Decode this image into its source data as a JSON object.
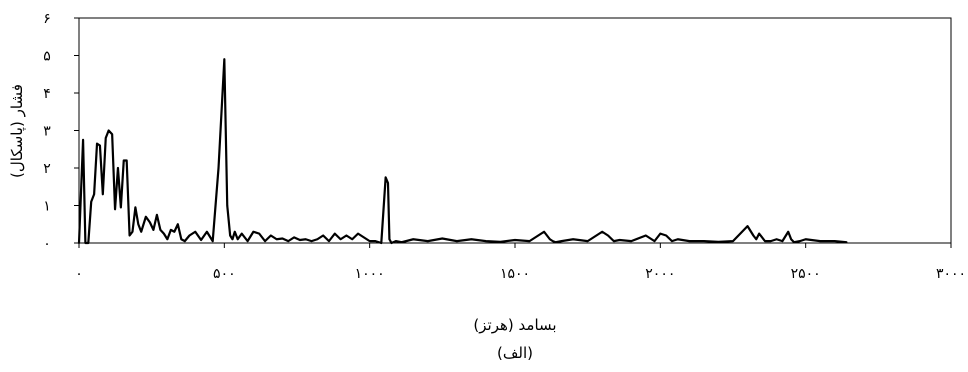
{
  "chart_data": {
    "type": "line",
    "title": "",
    "xlabel": "بسامد (هرتز)",
    "ylabel": "فشار (پاسکال)",
    "caption": "(الف)",
    "xlim": [
      0,
      3000
    ],
    "ylim": [
      0,
      6
    ],
    "x_ticks": [
      0,
      500,
      1000,
      1500,
      2000,
      2500,
      3000
    ],
    "x_tick_labels": [
      "۰",
      "۵۰۰",
      "۱۰۰۰",
      "۱۵۰۰",
      "۲۰۰۰",
      "۲۵۰۰",
      "۳۰۰۰"
    ],
    "y_ticks": [
      0,
      1,
      2,
      3,
      4,
      5,
      6
    ],
    "y_tick_labels": [
      "۰",
      "۱",
      "۲",
      "۳",
      "۴",
      "۵",
      "۶"
    ],
    "grid": false,
    "legend": "none",
    "line_color": "#000000",
    "series": [
      {
        "x": [
          0,
          14,
          22,
          32,
          42,
          52,
          62,
          72,
          82,
          92,
          102,
          114,
          124,
          134,
          144,
          154,
          164,
          174,
          184,
          194,
          204,
          214,
          230,
          244,
          256,
          268,
          280,
          292,
          304,
          316,
          328,
          340,
          352,
          364,
          380,
          400,
          420,
          440,
          460,
          480,
          500,
          510,
          520,
          528,
          536,
          546,
          560,
          580,
          600,
          620,
          640,
          660,
          680,
          700,
          720,
          740,
          760,
          780,
          800,
          820,
          840,
          860,
          880,
          900,
          920,
          940,
          960,
          980,
          1000,
          1020,
          1040,
          1055,
          1063,
          1068,
          1075,
          1090,
          1110,
          1150,
          1200,
          1250,
          1300,
          1350,
          1400,
          1450,
          1500,
          1550,
          1600,
          1620,
          1630,
          1640,
          1660,
          1700,
          1750,
          1800,
          1820,
          1840,
          1860,
          1900,
          1950,
          1980,
          2000,
          2020,
          2040,
          2060,
          2100,
          2150,
          2200,
          2250,
          2300,
          2320,
          2330,
          2340,
          2360,
          2380,
          2400,
          2420,
          2440,
          2450,
          2460,
          2480,
          2500,
          2550,
          2600,
          2640
        ],
        "y": [
          0,
          2.75,
          0,
          0,
          1.1,
          1.3,
          2.65,
          2.6,
          1.3,
          2.8,
          3.0,
          2.9,
          0.9,
          2.0,
          0.95,
          2.2,
          2.2,
          0.2,
          0.3,
          0.95,
          0.5,
          0.3,
          0.7,
          0.55,
          0.35,
          0.75,
          0.35,
          0.25,
          0.1,
          0.35,
          0.3,
          0.5,
          0.1,
          0.05,
          0.2,
          0.3,
          0.08,
          0.3,
          0.05,
          2.0,
          4.9,
          1.0,
          0.2,
          0.1,
          0.3,
          0.1,
          0.25,
          0.05,
          0.3,
          0.25,
          0.05,
          0.2,
          0.1,
          0.12,
          0.05,
          0.15,
          0.08,
          0.1,
          0.05,
          0.1,
          0.2,
          0.05,
          0.25,
          0.1,
          0.2,
          0.1,
          0.25,
          0.15,
          0.05,
          0.05,
          0.0,
          1.75,
          1.6,
          0.1,
          0.0,
          0.05,
          0.02,
          0.1,
          0.05,
          0.12,
          0.05,
          0.1,
          0.05,
          0.03,
          0.08,
          0.05,
          0.3,
          0.1,
          0.05,
          0.02,
          0.05,
          0.1,
          0.05,
          0.3,
          0.2,
          0.05,
          0.08,
          0.05,
          0.2,
          0.05,
          0.25,
          0.2,
          0.05,
          0.1,
          0.05,
          0.05,
          0.03,
          0.05,
          0.45,
          0.2,
          0.1,
          0.25,
          0.05,
          0.05,
          0.1,
          0.05,
          0.3,
          0.1,
          0.02,
          0.05,
          0.1,
          0.05,
          0.05,
          0.02
        ]
      }
    ]
  }
}
